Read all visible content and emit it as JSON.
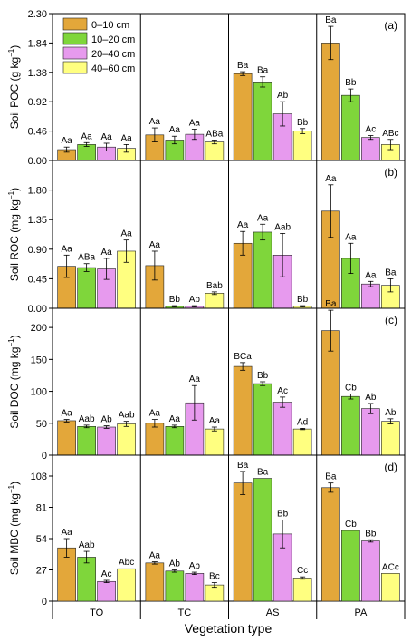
{
  "colors": {
    "0–10 cm": "#E3A73A",
    "10–20 cm": "#7FD63B",
    "20–40 cm": "#E79AEE",
    "40–60 cm": "#FFFF80"
  },
  "shared": {
    "categories": [
      "TO",
      "TC",
      "AS",
      "PA"
    ],
    "xlabel": "Vegetation type",
    "series_names": [
      "0–10 cm",
      "10–20 cm",
      "20–40 cm",
      "40–60 cm"
    ]
  },
  "chart_data": [
    {
      "type": "bar",
      "panel": "(a)",
      "ylabel_main": "Soil POC (g kg",
      "ylabel_sup": "−1",
      "ylabel_tail": ")",
      "ylim": [
        0,
        2.3
      ],
      "yticks": [
        "0.00",
        "0.46",
        "0.92",
        "1.38",
        "1.84",
        "2.30"
      ],
      "legend": "top-left",
      "categories": [
        "TO",
        "TC",
        "AS",
        "PA"
      ],
      "series": [
        {
          "name": "0–10 cm",
          "values": [
            0.17,
            0.4,
            1.36,
            1.84
          ],
          "errors": [
            0.04,
            0.11,
            0.03,
            0.26
          ],
          "labels": [
            "Aa",
            "Aa",
            "Ba",
            "Ba"
          ]
        },
        {
          "name": "10–20 cm",
          "values": [
            0.25,
            0.32,
            1.23,
            1.02
          ],
          "errors": [
            0.03,
            0.06,
            0.08,
            0.1
          ],
          "labels": [
            "Aa",
            "Aa",
            "Ba",
            "Bb"
          ]
        },
        {
          "name": "20–40 cm",
          "values": [
            0.21,
            0.41,
            0.73,
            0.36
          ],
          "errors": [
            0.06,
            0.08,
            0.19,
            0.03
          ],
          "labels": [
            "Aa",
            "Aa",
            "Ab",
            "Ac"
          ]
        },
        {
          "name": "40–60 cm",
          "values": [
            0.19,
            0.29,
            0.46,
            0.25
          ],
          "errors": [
            0.06,
            0.03,
            0.04,
            0.08
          ],
          "labels": [
            "Aa",
            "ABa",
            "Bb",
            "ABc"
          ]
        }
      ]
    },
    {
      "type": "bar",
      "panel": "(b)",
      "ylabel_main": "Soil ROC (mg kg",
      "ylabel_sup": "−1",
      "ylabel_tail": ")",
      "ylim": [
        0,
        2.25
      ],
      "yticks": [
        "0.00",
        "0.45",
        "0.90",
        "1.35",
        "1.80"
      ],
      "categories": [
        "TO",
        "TC",
        "AS",
        "PA"
      ],
      "series": [
        {
          "name": "0–10 cm",
          "values": [
            0.64,
            0.65,
            0.99,
            1.48
          ],
          "errors": [
            0.17,
            0.22,
            0.18,
            0.4
          ],
          "labels": [
            "Aa",
            "Aa",
            "Aa",
            "Aa"
          ]
        },
        {
          "name": "10–20 cm",
          "values": [
            0.62,
            0.03,
            1.16,
            0.76
          ],
          "errors": [
            0.06,
            0.01,
            0.12,
            0.23
          ],
          "labels": [
            "ABa",
            "Bb",
            "Aa",
            "Aa"
          ]
        },
        {
          "name": "20–40 cm",
          "values": [
            0.6,
            0.03,
            0.81,
            0.37
          ],
          "errors": [
            0.16,
            0.01,
            0.33,
            0.04
          ],
          "labels": [
            "Aa",
            "Ab",
            "Aab",
            "Aa"
          ]
        },
        {
          "name": "40–60 cm",
          "values": [
            0.87,
            0.23,
            0.03,
            0.35
          ],
          "errors": [
            0.17,
            0.02,
            0.01,
            0.1
          ],
          "labels": [
            "Aa",
            "Bab",
            "Bb",
            "Ba"
          ]
        }
      ]
    },
    {
      "type": "bar",
      "panel": "(c)",
      "ylabel_main": "Soil DOC (mg kg",
      "ylabel_sup": "−1",
      "ylabel_tail": ")",
      "ylim": [
        0,
        230
      ],
      "yticks": [
        "0",
        "50",
        "100",
        "150",
        "200"
      ],
      "categories": [
        "TO",
        "TC",
        "AS",
        "PA"
      ],
      "series": [
        {
          "name": "0–10 cm",
          "values": [
            54,
            50,
            139,
            195
          ],
          "errors": [
            2,
            6,
            6,
            32
          ],
          "labels": [
            "Aa",
            "Aa",
            "BCa",
            "Ba"
          ]
        },
        {
          "name": "10–20 cm",
          "values": [
            45,
            45,
            112,
            92
          ],
          "errors": [
            2,
            2,
            3,
            4
          ],
          "labels": [
            "Aab",
            "Aa",
            "Bb",
            "Cb"
          ]
        },
        {
          "name": "20–40 cm",
          "values": [
            44,
            82,
            83,
            73
          ],
          "errors": [
            2,
            27,
            8,
            8
          ],
          "labels": [
            "Ab",
            "Aa",
            "Ac",
            "Ab"
          ]
        },
        {
          "name": "40–60 cm",
          "values": [
            49,
            41,
            41,
            53
          ],
          "errors": [
            4,
            3,
            1,
            4
          ],
          "labels": [
            "Aab",
            "Aa",
            "Ad",
            "Ab"
          ]
        }
      ]
    },
    {
      "type": "bar",
      "panel": "(d)",
      "ylabel_main": "Soil MBC (mg kg",
      "ylabel_sup": "−1",
      "ylabel_tail": ")",
      "ylim": [
        0,
        126
      ],
      "yticks": [
        "0",
        "27",
        "54",
        "81",
        "108"
      ],
      "categories": [
        "TO",
        "TC",
        "AS",
        "PA"
      ],
      "series": [
        {
          "name": "0–10 cm",
          "values": [
            46,
            33,
            102,
            98
          ],
          "errors": [
            8,
            1,
            10,
            4
          ],
          "labels": [
            "Aa",
            "Aa",
            "Ba",
            "Ba"
          ]
        },
        {
          "name": "10–20 cm",
          "values": [
            38,
            26,
            106,
            61
          ],
          "errors": [
            5,
            1,
            0,
            0
          ],
          "labels": [
            "Aab",
            "Ab",
            "Ba",
            "Cb"
          ]
        },
        {
          "name": "20–40 cm",
          "values": [
            17,
            24,
            58,
            52
          ],
          "errors": [
            1,
            1,
            12,
            1
          ],
          "labels": [
            "Ac",
            "Ab",
            "Bb",
            "Bb"
          ]
        },
        {
          "name": "40–60 cm",
          "values": [
            28,
            14,
            20,
            24
          ],
          "errors": [
            0,
            2,
            1,
            0
          ],
          "labels": [
            "Abc",
            "Bc",
            "Cc",
            "ACc"
          ]
        }
      ]
    }
  ]
}
